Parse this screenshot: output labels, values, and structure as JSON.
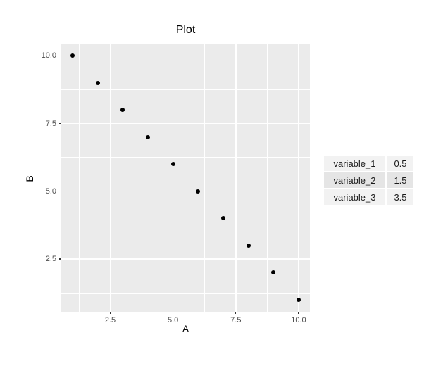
{
  "chart_data": {
    "type": "scatter",
    "title": "Plot",
    "xlabel": "A",
    "ylabel": "B",
    "x": [
      1,
      2,
      3,
      4,
      5,
      6,
      7,
      8,
      9,
      10
    ],
    "y": [
      10,
      9,
      8,
      7,
      6,
      5,
      4,
      3,
      2,
      1
    ],
    "xlim": [
      0.55,
      10.45
    ],
    "ylim": [
      0.55,
      10.45
    ],
    "x_ticks": {
      "values": [
        2.5,
        5.0,
        7.5,
        10.0
      ],
      "labels": [
        "2.5",
        "5.0",
        "7.5",
        "10.0"
      ]
    },
    "y_ticks": {
      "values": [
        2.5,
        5.0,
        7.5,
        10.0
      ],
      "labels": [
        "2.5",
        "5.0",
        "7.5",
        "10.0"
      ]
    },
    "x_minor": [
      1.25,
      3.75,
      6.25,
      8.75
    ],
    "y_minor": [
      1.25,
      3.75,
      6.25,
      8.75
    ],
    "grid": true,
    "legend": "none",
    "styles": {
      "panel_bg": "#EBEBEB",
      "grid_color": "#FFFFFF",
      "point_color": "#000000",
      "tick_color": "#333333",
      "tick_label_color": "#4D4D4D",
      "title_color": "#000000"
    }
  },
  "side_table": {
    "rows": [
      {
        "label": "variable_1",
        "value": "0.5"
      },
      {
        "label": "variable_2",
        "value": "1.5"
      },
      {
        "label": "variable_3",
        "value": "3.5"
      }
    ],
    "fill_odd": "#F2F2F2",
    "fill_even": "#E5E5E5",
    "text_color": "#1A1A1A"
  }
}
